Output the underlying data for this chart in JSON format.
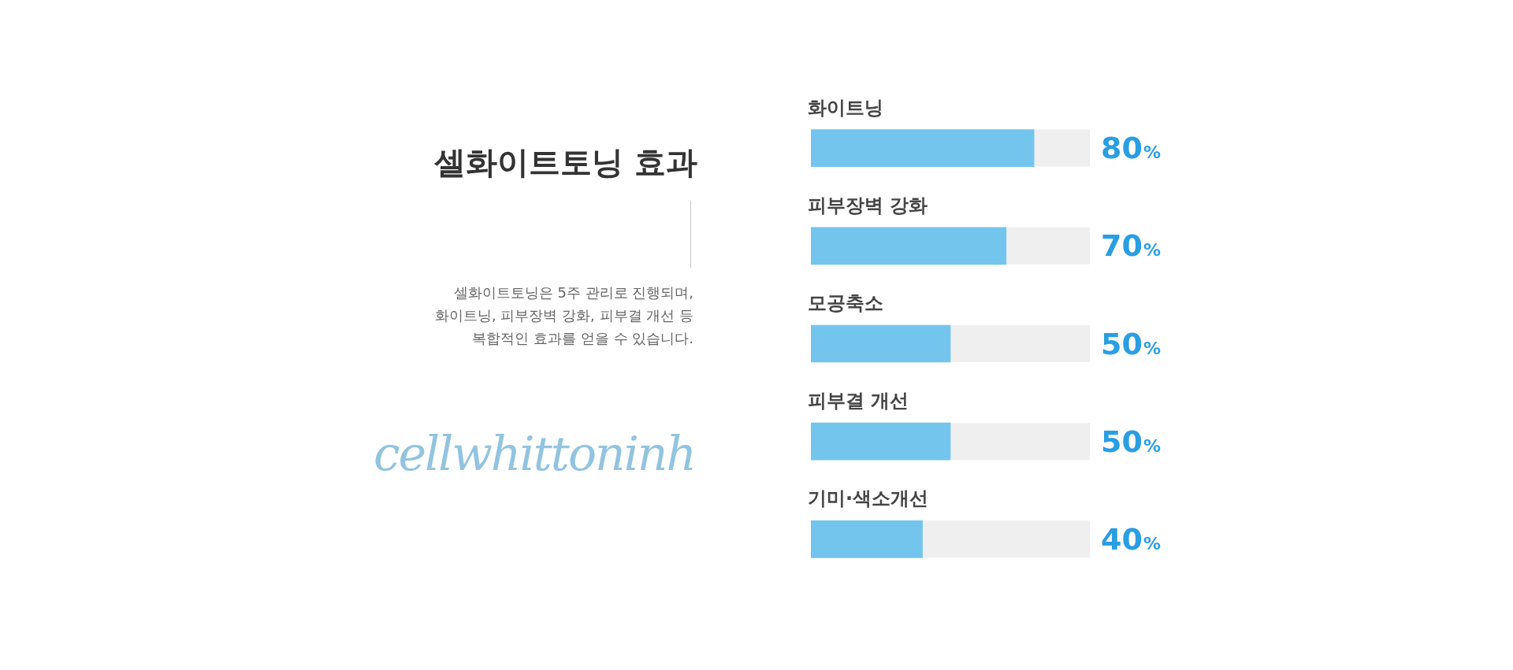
{
  "chart_data": {
    "type": "bar",
    "orientation": "horizontal",
    "title": "셀화이트토닝 효과",
    "subtitle": "셀화이트토닝은 5주 관리로 진행되며,\n화이트닝, 피부장벽 강화, 피부결 개선 등\n복합적인 효과를 얻을 수 있습니다.",
    "annotations": [
      "cellwhittoninh"
    ],
    "categories": [
      "화이트닝",
      "피부장벽 강화",
      "모공축소",
      "피부결 개선",
      "기미·색소개선"
    ],
    "values": [
      80,
      70,
      50,
      50,
      40
    ],
    "color": "#74c5ed",
    "value_labels": [
      "80%",
      "70%",
      "50%",
      "50%",
      "40%"
    ],
    "xlim": [
      0,
      100
    ],
    "tick_labels": "y"
  }
}
